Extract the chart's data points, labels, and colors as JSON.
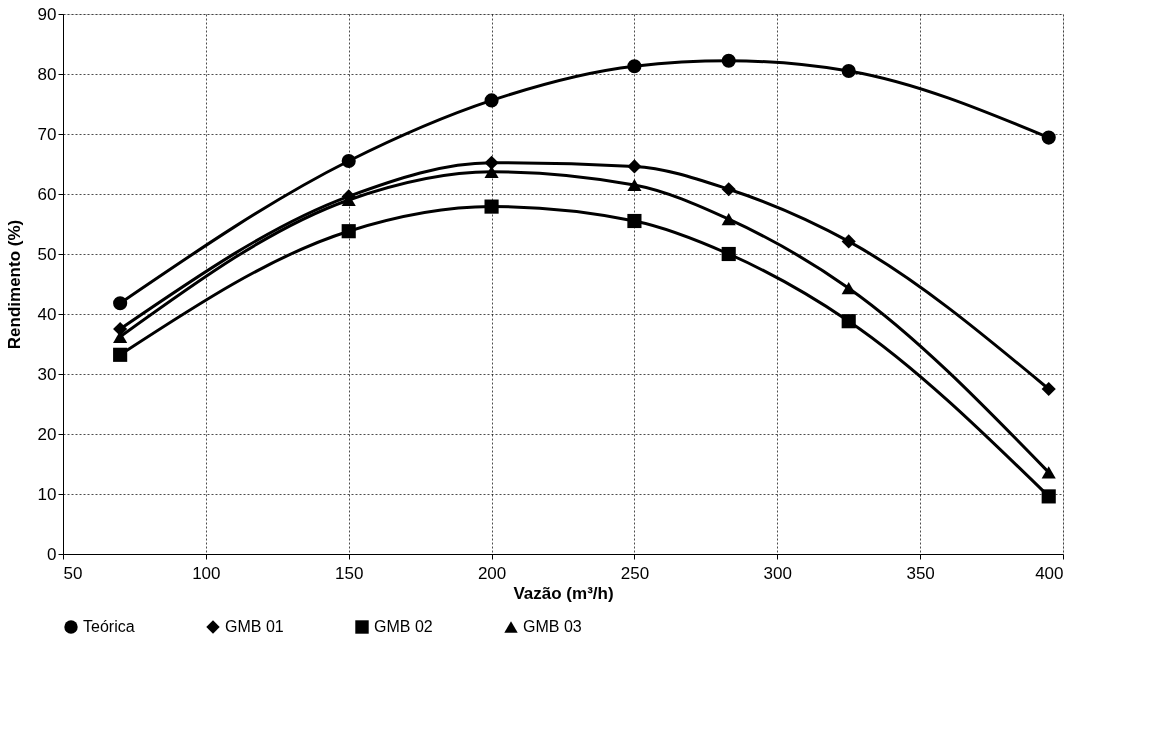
{
  "chart_data": {
    "type": "line",
    "xlabel": "Vazão (m³/h)",
    "ylabel": "Rendimento (%)",
    "x": [
      70,
      150,
      200,
      250,
      283,
      325,
      395
    ],
    "series": [
      {
        "name": "Teórica",
        "color": "#000000",
        "marker": "circle",
        "values": [
          41.8,
          65.5,
          75.6,
          81.3,
          82.2,
          80.5,
          69.4
        ]
      },
      {
        "name": "GMB 01",
        "color": "#000000",
        "marker": "diamond",
        "values": [
          37.5,
          59.6,
          65.2,
          64.6,
          60.8,
          52.1,
          27.5
        ]
      },
      {
        "name": "GMB 02",
        "color": "#000000",
        "marker": "square",
        "values": [
          33.2,
          53.8,
          57.9,
          55.5,
          50.0,
          38.8,
          9.6
        ]
      },
      {
        "name": "GMB 03",
        "color": "#000000",
        "marker": "triangle",
        "values": [
          36.2,
          59.0,
          63.7,
          61.5,
          55.8,
          44.3,
          13.6
        ]
      }
    ],
    "xlim": [
      50,
      400
    ],
    "xticks": [
      50,
      100,
      150,
      200,
      250,
      300,
      350,
      400
    ],
    "ylim": [
      0,
      90
    ],
    "yticks": [
      0,
      10,
      20,
      30,
      40,
      50,
      60,
      70,
      80,
      90
    ],
    "grid": true,
    "legend": "bottom",
    "line_style": "solid"
  }
}
